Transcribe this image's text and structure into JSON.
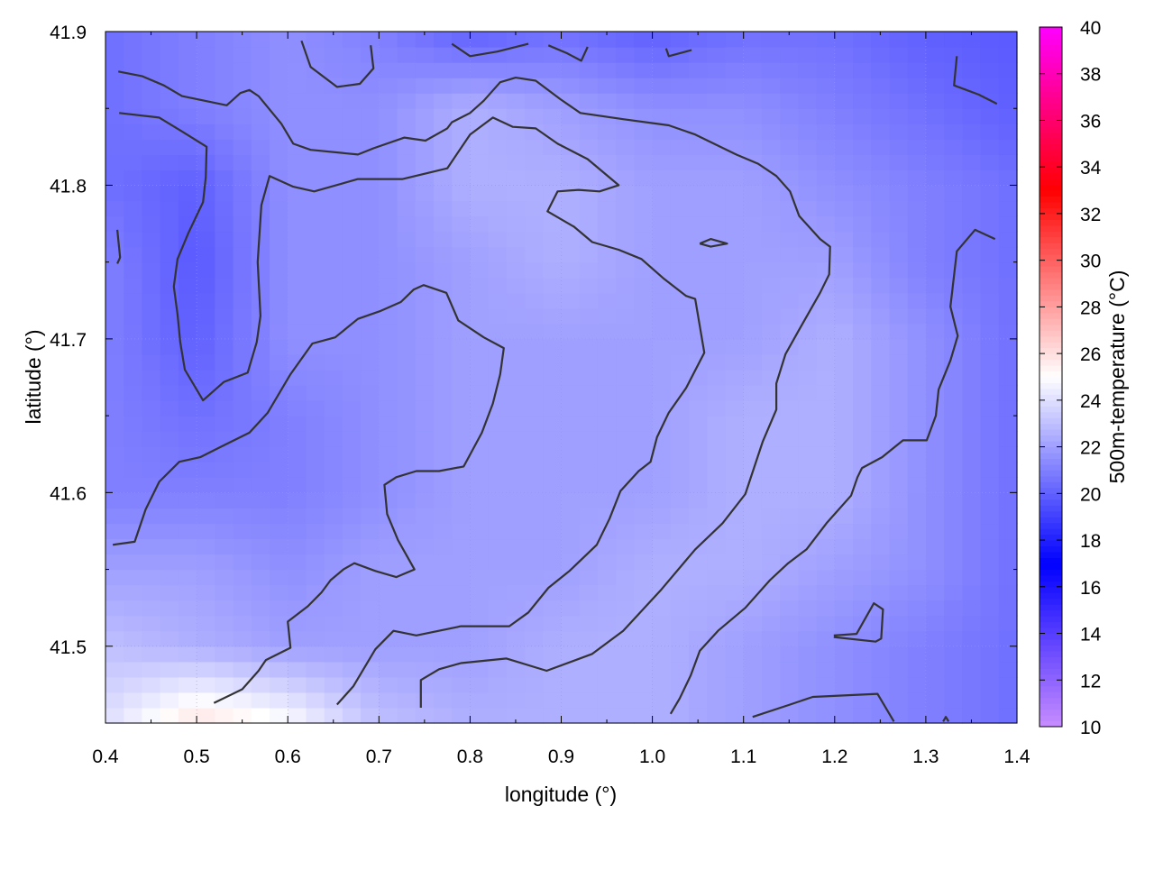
{
  "chart_data": {
    "type": "heatmap",
    "xlabel": "longitude (°)",
    "ylabel": "latitude (°)",
    "colorbar_label": "500m-temperature (°C)",
    "xlim": [
      0.4,
      1.4
    ],
    "ylim": [
      41.45,
      41.9
    ],
    "clim": [
      10,
      40
    ],
    "grid": true,
    "x_ticks": [
      "0.4",
      "0.5",
      "0.6",
      "0.7",
      "0.8",
      "0.9",
      "1.0",
      "1.1",
      "1.2",
      "1.3",
      "1.4"
    ],
    "y_ticks": [
      "41.5",
      "41.6",
      "41.7",
      "41.8",
      "41.9"
    ],
    "colorbar_ticks": [
      "10",
      "12",
      "14",
      "16",
      "18",
      "20",
      "22",
      "24",
      "26",
      "28",
      "30",
      "32",
      "34",
      "36",
      "38",
      "40"
    ],
    "colormap": [
      {
        "value": 10,
        "color": "#c88cff"
      },
      {
        "value": 17,
        "color": "#0000ff"
      },
      {
        "value": 25,
        "color": "#ffffff"
      },
      {
        "value": 33,
        "color": "#ff0000"
      },
      {
        "value": 40,
        "color": "#ff00ff"
      }
    ],
    "contour_color": "#333333",
    "grid_lon": [
      0.4,
      0.5,
      0.6,
      0.7,
      0.8,
      0.9,
      1.0,
      1.1,
      1.2,
      1.3,
      1.4
    ],
    "grid_lat": [
      41.9,
      41.85,
      41.8,
      41.75,
      41.7,
      41.65,
      41.6,
      41.55,
      41.5,
      41.45
    ],
    "values": [
      [
        20.5,
        21,
        21.5,
        21,
        20,
        20.5,
        20,
        20.5,
        20.5,
        20,
        19.8
      ],
      [
        20.5,
        21,
        21.5,
        21.5,
        22.5,
        22,
        21.5,
        21.5,
        21,
        20.5,
        20
      ],
      [
        20.5,
        20,
        21.5,
        21.5,
        22.5,
        22.5,
        22,
        22,
        21.5,
        21,
        20.5
      ],
      [
        21,
        19.8,
        21.5,
        21.5,
        22,
        22.5,
        22,
        22,
        22,
        21,
        20.5
      ],
      [
        21,
        20,
        21.5,
        21.5,
        22,
        22,
        22,
        22,
        22.5,
        21.5,
        20.5
      ],
      [
        21,
        20.5,
        21,
        21.5,
        22,
        22,
        22,
        22.5,
        22.5,
        21.5,
        20.5
      ],
      [
        21,
        21,
        21,
        21.5,
        22,
        22,
        22,
        22.5,
        22.5,
        21.5,
        20.5
      ],
      [
        22,
        22,
        21.5,
        22,
        22,
        22,
        22.5,
        22.5,
        22,
        21.5,
        20.5
      ],
      [
        23,
        22.5,
        22,
        22,
        22,
        22.5,
        22.5,
        22,
        21.5,
        21,
        20.5
      ],
      [
        24,
        26,
        25,
        23,
        22.5,
        22.5,
        22.5,
        22,
        21.5,
        21,
        20.5
      ]
    ],
    "contours": [
      [
        [
          0.414,
          41.874
        ],
        [
          0.44,
          41.871
        ],
        [
          0.464,
          41.865
        ],
        [
          0.484,
          41.858
        ],
        [
          0.533,
          41.852
        ],
        [
          0.548,
          41.86
        ],
        [
          0.558,
          41.862
        ],
        [
          0.568,
          41.858
        ],
        [
          0.593,
          41.84
        ],
        [
          0.606,
          41.827
        ],
        [
          0.625,
          41.823
        ],
        [
          0.677,
          41.82
        ],
        [
          0.694,
          41.824
        ],
        [
          0.728,
          41.831
        ],
        [
          0.751,
          41.829
        ],
        [
          0.775,
          41.837
        ],
        [
          0.78,
          41.841
        ],
        [
          0.8,
          41.847
        ],
        [
          0.815,
          41.855
        ],
        [
          0.833,
          41.867
        ],
        [
          0.85,
          41.87
        ],
        [
          0.872,
          41.868
        ],
        [
          0.899,
          41.856
        ],
        [
          0.921,
          41.847
        ],
        [
          0.968,
          41.843
        ],
        [
          1.018,
          41.839
        ],
        [
          1.047,
          41.833
        ],
        [
          1.092,
          41.82
        ],
        [
          1.116,
          41.814
        ],
        [
          1.136,
          41.806
        ],
        [
          1.151,
          41.796
        ],
        [
          1.161,
          41.78
        ],
        [
          1.184,
          41.765
        ],
        [
          1.195,
          41.76
        ],
        [
          1.194,
          41.742
        ],
        [
          1.184,
          41.73
        ],
        [
          1.161,
          41.706
        ],
        [
          1.146,
          41.69
        ],
        [
          1.136,
          41.671
        ],
        [
          1.136,
          41.654
        ],
        [
          1.121,
          41.633
        ],
        [
          1.102,
          41.599
        ],
        [
          1.077,
          41.58
        ],
        [
          1.047,
          41.563
        ],
        [
          1.01,
          41.537
        ],
        [
          0.968,
          41.51
        ],
        [
          0.934,
          41.495
        ],
        [
          0.884,
          41.484
        ],
        [
          0.84,
          41.492
        ],
        [
          0.79,
          41.489
        ],
        [
          0.766,
          41.485
        ],
        [
          0.746,
          41.478
        ],
        [
          0.746,
          41.46
        ]
      ],
      [
        [
          0.415,
          41.847
        ],
        [
          0.459,
          41.844
        ],
        [
          0.484,
          41.835
        ],
        [
          0.511,
          41.825
        ],
        [
          0.51,
          41.805
        ],
        [
          0.507,
          41.789
        ],
        [
          0.491,
          41.769
        ],
        [
          0.479,
          41.752
        ],
        [
          0.475,
          41.734
        ],
        [
          0.479,
          41.716
        ],
        [
          0.482,
          41.698
        ],
        [
          0.487,
          41.68
        ],
        [
          0.507,
          41.66
        ],
        [
          0.53,
          41.672
        ],
        [
          0.556,
          41.678
        ],
        [
          0.566,
          41.698
        ],
        [
          0.57,
          41.715
        ],
        [
          0.567,
          41.75
        ],
        [
          0.571,
          41.787
        ],
        [
          0.58,
          41.806
        ],
        [
          0.606,
          41.799
        ],
        [
          0.629,
          41.796
        ],
        [
          0.677,
          41.804
        ],
        [
          0.726,
          41.804
        ],
        [
          0.775,
          41.811
        ],
        [
          0.8,
          41.833
        ],
        [
          0.825,
          41.844
        ],
        [
          0.847,
          41.838
        ],
        [
          0.872,
          41.837
        ],
        [
          0.896,
          41.827
        ],
        [
          0.929,
          41.817
        ],
        [
          0.963,
          41.8
        ],
        [
          0.942,
          41.796
        ],
        [
          0.919,
          41.797
        ],
        [
          0.896,
          41.796
        ],
        [
          0.885,
          41.783
        ],
        [
          0.914,
          41.773
        ],
        [
          0.934,
          41.763
        ],
        [
          0.963,
          41.758
        ],
        [
          0.988,
          41.752
        ],
        [
          1.013,
          41.739
        ],
        [
          1.037,
          41.728
        ],
        [
          1.047,
          41.726
        ],
        [
          1.057,
          41.691
        ],
        [
          1.037,
          41.668
        ],
        [
          1.018,
          41.652
        ],
        [
          1.005,
          41.636
        ],
        [
          0.998,
          41.62
        ],
        [
          0.985,
          41.614
        ],
        [
          0.965,
          41.601
        ],
        [
          0.953,
          41.583
        ],
        [
          0.939,
          41.566
        ],
        [
          0.909,
          41.549
        ],
        [
          0.886,
          41.538
        ],
        [
          0.864,
          41.522
        ],
        [
          0.843,
          41.513
        ],
        [
          0.79,
          41.513
        ],
        [
          0.741,
          41.507
        ],
        [
          0.716,
          41.51
        ],
        [
          0.696,
          41.498
        ],
        [
          0.672,
          41.474
        ],
        [
          0.654,
          41.462
        ]
      ],
      [
        [
          0.408,
          41.566
        ],
        [
          0.432,
          41.568
        ],
        [
          0.444,
          41.589
        ],
        [
          0.459,
          41.607
        ],
        [
          0.481,
          41.62
        ],
        [
          0.504,
          41.623
        ],
        [
          0.524,
          41.629
        ],
        [
          0.558,
          41.639
        ],
        [
          0.578,
          41.652
        ],
        [
          0.603,
          41.677
        ],
        [
          0.627,
          41.697
        ],
        [
          0.652,
          41.701
        ],
        [
          0.677,
          41.713
        ],
        [
          0.701,
          41.718
        ],
        [
          0.724,
          41.724
        ],
        [
          0.738,
          41.732
        ],
        [
          0.749,
          41.735
        ],
        [
          0.774,
          41.73
        ],
        [
          0.787,
          41.712
        ],
        [
          0.815,
          41.701
        ],
        [
          0.837,
          41.694
        ],
        [
          0.833,
          41.677
        ],
        [
          0.825,
          41.658
        ],
        [
          0.813,
          41.639
        ],
        [
          0.793,
          41.617
        ],
        [
          0.766,
          41.614
        ],
        [
          0.741,
          41.614
        ],
        [
          0.719,
          41.61
        ],
        [
          0.706,
          41.605
        ],
        [
          0.709,
          41.586
        ],
        [
          0.721,
          41.569
        ],
        [
          0.739,
          41.55
        ],
        [
          0.719,
          41.545
        ],
        [
          0.696,
          41.549
        ],
        [
          0.673,
          41.554
        ],
        [
          0.661,
          41.55
        ],
        [
          0.647,
          41.543
        ],
        [
          0.637,
          41.535
        ],
        [
          0.622,
          41.526
        ],
        [
          0.6,
          41.516
        ],
        [
          0.603,
          41.499
        ],
        [
          0.576,
          41.491
        ],
        [
          0.568,
          41.484
        ],
        [
          0.55,
          41.472
        ],
        [
          0.519,
          41.463
        ]
      ],
      [
        [
          1.376,
          41.765
        ],
        [
          1.354,
          41.771
        ],
        [
          1.334,
          41.757
        ],
        [
          1.327,
          41.721
        ],
        [
          1.335,
          41.702
        ],
        [
          1.327,
          41.686
        ],
        [
          1.314,
          41.667
        ],
        [
          1.311,
          41.65
        ],
        [
          1.301,
          41.634
        ],
        [
          1.275,
          41.634
        ],
        [
          1.252,
          41.623
        ],
        [
          1.23,
          41.616
        ],
        [
          1.225,
          41.61
        ],
        [
          1.218,
          41.598
        ],
        [
          1.191,
          41.58
        ],
        [
          1.169,
          41.563
        ],
        [
          1.149,
          41.554
        ],
        [
          1.129,
          41.543
        ],
        [
          1.102,
          41.525
        ],
        [
          1.072,
          41.51
        ],
        [
          1.052,
          41.497
        ],
        [
          1.042,
          41.481
        ],
        [
          1.03,
          41.466
        ],
        [
          1.02,
          41.456
        ]
      ],
      [
        [
          0.615,
          41.894
        ],
        [
          0.625,
          41.877
        ],
        [
          0.654,
          41.864
        ],
        [
          0.679,
          41.866
        ],
        [
          0.694,
          41.876
        ],
        [
          0.691,
          41.891
        ]
      ],
      [
        [
          0.78,
          41.892
        ],
        [
          0.8,
          41.884
        ],
        [
          0.83,
          41.887
        ],
        [
          0.864,
          41.892
        ]
      ],
      [
        [
          0.886,
          41.891
        ],
        [
          0.906,
          41.886
        ],
        [
          0.922,
          41.881
        ],
        [
          0.929,
          41.89
        ]
      ],
      [
        [
          1.015,
          41.889
        ],
        [
          1.018,
          41.884
        ],
        [
          1.043,
          41.888
        ]
      ],
      [
        [
          1.334,
          41.884
        ],
        [
          1.331,
          41.865
        ],
        [
          1.358,
          41.859
        ],
        [
          1.378,
          41.853
        ]
      ],
      [
        [
          0.413,
          41.771
        ],
        [
          0.416,
          41.753
        ],
        [
          0.413,
          41.749
        ]
      ],
      [
        [
          1.052,
          41.762
        ],
        [
          1.064,
          41.765
        ],
        [
          1.082,
          41.762
        ],
        [
          1.064,
          41.76
        ],
        [
          1.052,
          41.762
        ]
      ],
      [
        [
          1.199,
          41.507
        ],
        [
          1.224,
          41.508
        ],
        [
          1.243,
          41.528
        ],
        [
          1.253,
          41.524
        ],
        [
          1.251,
          41.505
        ],
        [
          1.245,
          41.503
        ],
        [
          1.199,
          41.506
        ]
      ],
      [
        [
          1.11,
          41.454
        ],
        [
          1.151,
          41.462
        ],
        [
          1.176,
          41.467
        ],
        [
          1.247,
          41.469
        ],
        [
          1.265,
          41.451
        ]
      ],
      [
        [
          1.319,
          41.451
        ],
        [
          1.322,
          41.454
        ],
        [
          1.325,
          41.451
        ]
      ]
    ]
  }
}
